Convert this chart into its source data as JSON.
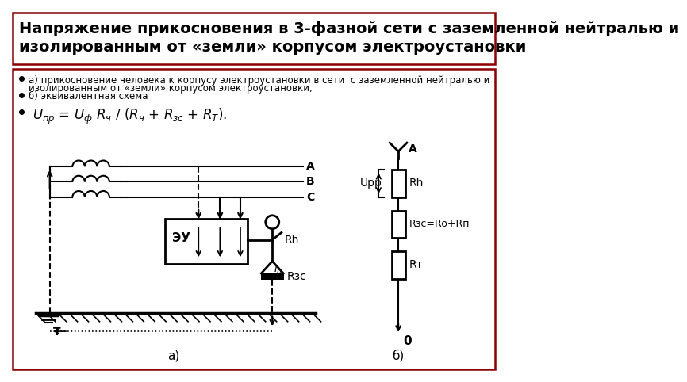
{
  "title_line1": "Напряжение прикосновения в 3-фазной сети с заземленной нейтралью и",
  "title_line2": "изолированным от «земли» корпусом электроустановки",
  "bullet1a": "а) прикосновение человека к корпусу электроустановки в сети  с заземленной нейтралью и",
  "bullet1b": "изолированным от «земли» корпусом электроустановки;",
  "bullet2": "б) эквивалентная схема",
  "bg_color": "#ffffff",
  "border_color": "#8B0000",
  "text_color": "#000000"
}
